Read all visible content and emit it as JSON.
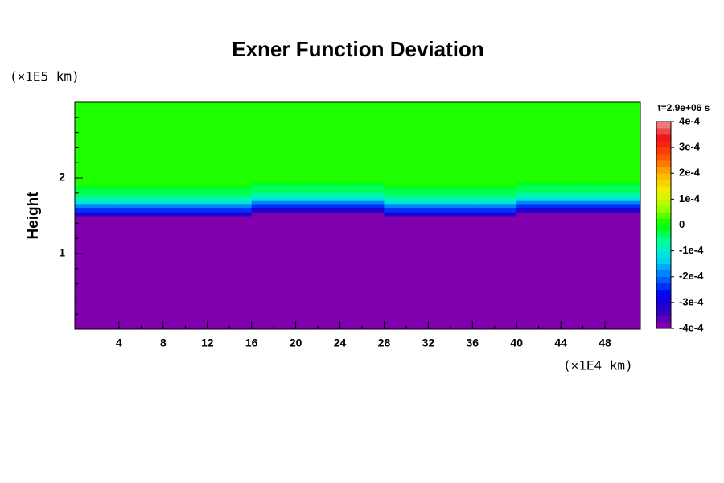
{
  "chart_data": {
    "type": "contour",
    "title": "Exner Function Deviation",
    "ylabel": "Height",
    "yunit": "(×1E5 km)",
    "xunit": "(×1E4 km)",
    "colorbar_title": "t=2.9e+06 s",
    "xlim": [
      0,
      51.2
    ],
    "ylim": [
      0,
      3
    ],
    "xticks": [
      4,
      8,
      12,
      16,
      20,
      24,
      28,
      32,
      36,
      40,
      44,
      48
    ],
    "xminorticks": [
      2,
      6,
      10,
      14,
      18,
      22,
      26,
      30,
      34,
      38,
      42,
      46,
      50
    ],
    "yticks": [
      1,
      2
    ],
    "yminorticks": [
      0.2,
      0.4,
      0.6,
      0.8,
      1.2,
      1.4,
      1.6,
      1.8,
      2.2,
      2.4,
      2.6,
      2.8
    ],
    "clim": [
      -0.0004,
      0.0004
    ],
    "clevels": 32,
    "cticks": [
      {
        "value": 0.0004,
        "label": "4e-4"
      },
      {
        "value": 0.0003,
        "label": "3e-4"
      },
      {
        "value": 0.0002,
        "label": "2e-4"
      },
      {
        "value": 0.0001,
        "label": "1e-4"
      },
      0,
      {
        "value": -0.0001,
        "label": "-1e-4"
      },
      {
        "value": -0.0002,
        "label": "-2e-4"
      },
      {
        "value": -0.0003,
        "label": "-3e-4"
      },
      {
        "value": -0.0004,
        "label": "-4e-4"
      }
    ],
    "colormap": [
      "#9400a8",
      "#3000c0",
      "#0000f0",
      "#0070ff",
      "#00d8f0",
      "#00ffa0",
      "#00ff00",
      "#a0ff00",
      "#f0f000",
      "#ffb000",
      "#ff5000",
      "#f01010",
      "#f09090"
    ],
    "xbins": [
      0,
      4,
      8,
      12,
      16,
      20,
      24,
      28,
      32,
      36,
      40,
      44,
      48,
      51.2
    ],
    "ybins": [
      0,
      1.4,
      1.45,
      1.5,
      1.55,
      1.6,
      1.65,
      1.7,
      1.75,
      1.8,
      1.85,
      1.9,
      1.95,
      2.0,
      2.05,
      2.1,
      2.15,
      3.0
    ],
    "z": [
      [
        -0.00042,
        -0.00042,
        -0.00042,
        -0.00042,
        -0.00042,
        -0.00042,
        -0.00042,
        -0.00042,
        -0.00042,
        -0.00042,
        -0.00042,
        -0.00042,
        -0.00042
      ],
      [
        -0.00042,
        -0.00042,
        -0.00042,
        -0.00042,
        -0.00042,
        -0.00042,
        -0.00042,
        -0.00042,
        -0.00042,
        -0.00042,
        -0.00042,
        -0.00042,
        -0.00042
      ],
      [
        -0.00038,
        -0.00038,
        -0.00038,
        -0.00038,
        -0.00042,
        -0.00042,
        -0.00042,
        -0.00038,
        -0.00038,
        -0.00038,
        -0.00042,
        -0.00042,
        -0.00042
      ],
      [
        -0.00032,
        -0.00032,
        -0.00032,
        -0.00032,
        -0.00038,
        -0.00038,
        -0.00038,
        -0.00032,
        -0.00032,
        -0.00032,
        -0.00038,
        -0.00038,
        -0.00038
      ],
      [
        -0.00025,
        -0.00025,
        -0.00025,
        -0.00025,
        -0.00032,
        -0.00032,
        -0.00032,
        -0.00025,
        -0.00025,
        -0.00025,
        -0.00032,
        -0.00032,
        -0.00032
      ],
      [
        -0.00018,
        -0.00018,
        -0.00018,
        -0.00018,
        -0.00025,
        -0.00025,
        -0.00025,
        -0.00018,
        -0.00018,
        -0.00018,
        -0.00025,
        -0.00025,
        -0.00025
      ],
      [
        -0.00012,
        -0.00012,
        -0.00012,
        -0.00012,
        -0.00018,
        -0.00018,
        -0.00018,
        -0.00012,
        -0.00012,
        -0.00012,
        -0.00018,
        -0.00018,
        -0.00018
      ],
      [
        -8e-05,
        -8e-05,
        -8e-05,
        -8e-05,
        -0.00012,
        -0.00012,
        -0.00012,
        -8e-05,
        -8e-05,
        -8e-05,
        -0.00012,
        -0.00012,
        -0.00012
      ],
      [
        -5e-05,
        -5e-05,
        -5e-05,
        -5e-05,
        -8e-05,
        -8e-05,
        -8e-05,
        -5e-05,
        -5e-05,
        -5e-05,
        -8e-05,
        -8e-05,
        -8e-05
      ],
      [
        -3e-05,
        -3e-05,
        -3e-05,
        -3e-05,
        -5e-05,
        -5e-05,
        -5e-05,
        -3e-05,
        -3e-05,
        -3e-05,
        -5e-05,
        -5e-05,
        -5e-05
      ],
      [
        -1e-05,
        -1e-05,
        -1e-05,
        -1e-05,
        -3e-05,
        -3e-05,
        -3e-05,
        -1e-05,
        -1e-05,
        -1e-05,
        -3e-05,
        -3e-05,
        -3e-05
      ],
      [
        0,
        0,
        0,
        0,
        -1e-05,
        -1e-05,
        -1e-05,
        0,
        0,
        0,
        -1e-05,
        -1e-05,
        -1e-05
      ],
      [
        0,
        0,
        0,
        0,
        0,
        0,
        0,
        0,
        0,
        0,
        0,
        0,
        0
      ],
      [
        1e-05,
        1e-05,
        1e-05,
        1e-05,
        1e-05,
        1e-05,
        1e-05,
        1e-05,
        1e-05,
        1e-05,
        1e-05,
        1e-05,
        1e-05
      ],
      [
        1e-05,
        1e-05,
        1e-05,
        1e-05,
        1e-05,
        1e-05,
        1e-05,
        1e-05,
        1e-05,
        1e-05,
        1e-05,
        1e-05,
        1e-05
      ],
      [
        0,
        0,
        0,
        0,
        0,
        0,
        0,
        0,
        0,
        0,
        0,
        0,
        0
      ],
      [
        0,
        0,
        0,
        0,
        0,
        0,
        0,
        0,
        0,
        0,
        0,
        0,
        0
      ]
    ]
  }
}
